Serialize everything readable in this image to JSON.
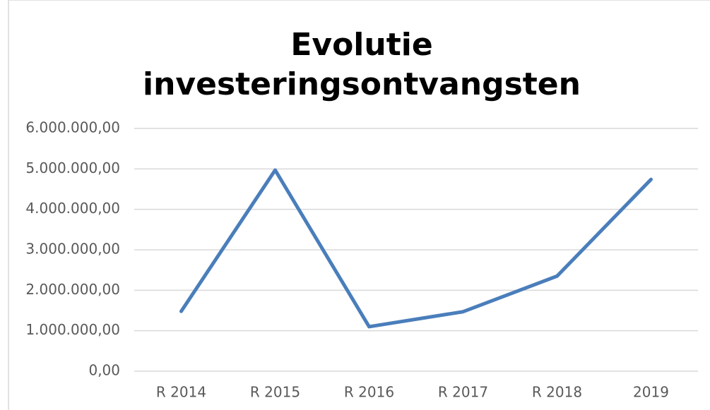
{
  "chart_data": {
    "type": "line",
    "title": "Evolutie investeringsontvangsten",
    "categories": [
      "R 2014",
      "R 2015",
      "R 2016",
      "R 2017",
      "R 2018",
      "2019"
    ],
    "series": [
      {
        "name": "investeringsontvangsten",
        "color": "#4a7ebb",
        "values": [
          1480000,
          4970000,
          1100000,
          1470000,
          2350000,
          4740000
        ]
      }
    ],
    "ylim": [
      0,
      6000000
    ],
    "yticks": [
      {
        "value": 0,
        "label": "0,00"
      },
      {
        "value": 1000000,
        "label": "1.000.000,00"
      },
      {
        "value": 2000000,
        "label": "2.000.000,00"
      },
      {
        "value": 3000000,
        "label": "3.000.000,00"
      },
      {
        "value": 4000000,
        "label": "4.000.000,00"
      },
      {
        "value": 5000000,
        "label": "5.000.000,00"
      },
      {
        "value": 6000000,
        "label": "6.000.000,00"
      }
    ],
    "grid": true
  }
}
